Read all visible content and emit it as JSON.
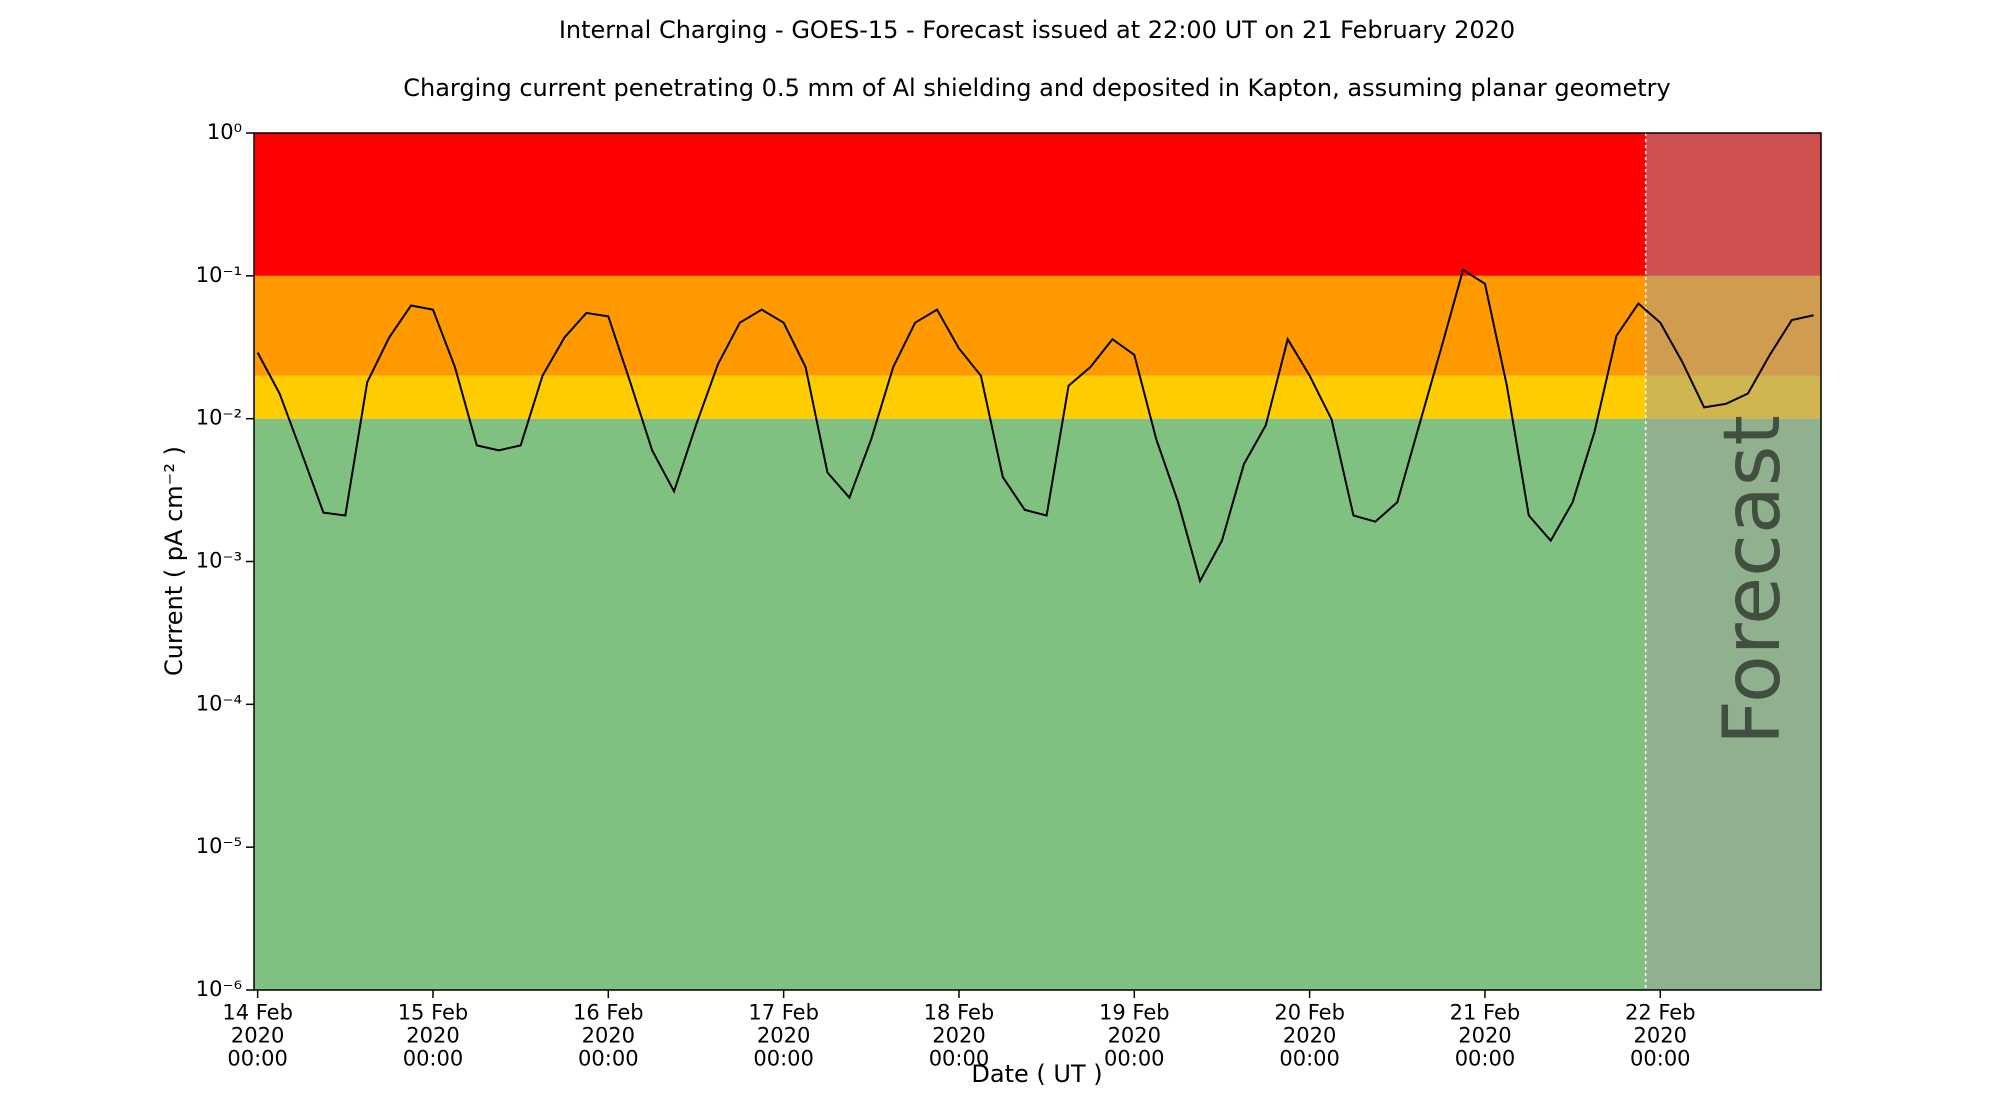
{
  "chart_data": {
    "type": "line",
    "title": "Internal Charging - GOES-15 - Forecast issued at 22:00 UT on 21 February 2020",
    "subtitle": "Charging current penetrating 0.5 mm of Al shielding and deposited in Kapton, assuming planar geometry",
    "xlabel": "Date ( UT )",
    "ylabel": "Current ( pA cm⁻² )",
    "log_y": true,
    "xlim": [
      "2020-02-13T23:30",
      "2020-02-22T22:00"
    ],
    "ylim": [
      1e-06,
      1
    ],
    "xticks": [
      {
        "value": "2020-02-14T00:00",
        "label": "14 Feb\n2020\n00:00"
      },
      {
        "value": "2020-02-15T00:00",
        "label": "15 Feb\n2020\n00:00"
      },
      {
        "value": "2020-02-16T00:00",
        "label": "16 Feb\n2020\n00:00"
      },
      {
        "value": "2020-02-17T00:00",
        "label": "17 Feb\n2020\n00:00"
      },
      {
        "value": "2020-02-18T00:00",
        "label": "18 Feb\n2020\n00:00"
      },
      {
        "value": "2020-02-19T00:00",
        "label": "19 Feb\n2020\n00:00"
      },
      {
        "value": "2020-02-20T00:00",
        "label": "20 Feb\n2020\n00:00"
      },
      {
        "value": "2020-02-21T00:00",
        "label": "21 Feb\n2020\n00:00"
      },
      {
        "value": "2020-02-22T00:00",
        "label": "22 Feb\n2020\n00:00"
      }
    ],
    "yticks": [
      {
        "value": 1e-06,
        "label": "10⁻⁶"
      },
      {
        "value": 1e-05,
        "label": "10⁻⁵"
      },
      {
        "value": 0.0001,
        "label": "10⁻⁴"
      },
      {
        "value": 0.001,
        "label": "10⁻³"
      },
      {
        "value": 0.01,
        "label": "10⁻²"
      },
      {
        "value": 0.1,
        "label": "10⁻¹"
      },
      {
        "value": 1,
        "label": "10⁰"
      }
    ],
    "bands": [
      {
        "from": 1e-06,
        "to": 0.01,
        "color": "#80c080"
      },
      {
        "from": 0.01,
        "to": 0.02,
        "color": "#ffcc00"
      },
      {
        "from": 0.02,
        "to": 0.1,
        "color": "#ff9900"
      },
      {
        "from": 0.1,
        "to": 1,
        "color": "#ff0000"
      }
    ],
    "forecast": {
      "start": "2020-02-21T22:00",
      "label": "Forecast",
      "color": "#a0a0a0"
    },
    "x": [
      "2020-02-14T00:00",
      "2020-02-14T03:00",
      "2020-02-14T06:00",
      "2020-02-14T09:00",
      "2020-02-14T12:00",
      "2020-02-14T15:00",
      "2020-02-14T18:00",
      "2020-02-14T21:00",
      "2020-02-15T00:00",
      "2020-02-15T03:00",
      "2020-02-15T06:00",
      "2020-02-15T09:00",
      "2020-02-15T12:00",
      "2020-02-15T15:00",
      "2020-02-15T18:00",
      "2020-02-15T21:00",
      "2020-02-16T00:00",
      "2020-02-16T03:00",
      "2020-02-16T06:00",
      "2020-02-16T09:00",
      "2020-02-16T12:00",
      "2020-02-16T15:00",
      "2020-02-16T18:00",
      "2020-02-16T21:00",
      "2020-02-17T00:00",
      "2020-02-17T03:00",
      "2020-02-17T06:00",
      "2020-02-17T09:00",
      "2020-02-17T12:00",
      "2020-02-17T15:00",
      "2020-02-17T18:00",
      "2020-02-17T21:00",
      "2020-02-18T00:00",
      "2020-02-18T03:00",
      "2020-02-18T06:00",
      "2020-02-18T09:00",
      "2020-02-18T12:00",
      "2020-02-18T15:00",
      "2020-02-18T18:00",
      "2020-02-18T21:00",
      "2020-02-19T00:00",
      "2020-02-19T03:00",
      "2020-02-19T06:00",
      "2020-02-19T09:00",
      "2020-02-19T12:00",
      "2020-02-19T15:00",
      "2020-02-19T18:00",
      "2020-02-19T21:00",
      "2020-02-20T00:00",
      "2020-02-20T03:00",
      "2020-02-20T06:00",
      "2020-02-20T09:00",
      "2020-02-20T12:00",
      "2020-02-20T15:00",
      "2020-02-20T18:00",
      "2020-02-20T21:00",
      "2020-02-21T00:00",
      "2020-02-21T03:00",
      "2020-02-21T06:00",
      "2020-02-21T09:00",
      "2020-02-21T12:00",
      "2020-02-21T15:00",
      "2020-02-21T18:00",
      "2020-02-21T21:00",
      "2020-02-22T00:00",
      "2020-02-22T03:00",
      "2020-02-22T06:00",
      "2020-02-22T09:00",
      "2020-02-22T12:00",
      "2020-02-22T15:00",
      "2020-02-22T18:00",
      "2020-02-22T21:00"
    ],
    "series": [
      {
        "name": "Current",
        "color": "#000000",
        "values": [
          0.029,
          0.015,
          0.0058,
          0.0022,
          0.0021,
          0.018,
          0.037,
          0.062,
          0.058,
          0.023,
          0.0065,
          0.006,
          0.0065,
          0.02,
          0.037,
          0.055,
          0.052,
          0.018,
          0.006,
          0.0031,
          0.009,
          0.024,
          0.047,
          0.058,
          0.047,
          0.023,
          0.0042,
          0.0028,
          0.0072,
          0.023,
          0.047,
          0.058,
          0.031,
          0.02,
          0.0039,
          0.0023,
          0.0021,
          0.017,
          0.023,
          0.036,
          0.028,
          0.0072,
          0.0026,
          0.00073,
          0.0014,
          0.0048,
          0.009,
          0.036,
          0.02,
          0.0099,
          0.0021,
          0.0019,
          0.0026,
          0.009,
          0.031,
          0.11,
          0.088,
          0.017,
          0.0021,
          0.0014,
          0.0026,
          0.0081,
          0.038,
          0.064,
          0.047,
          0.025,
          0.012,
          0.0127,
          0.015,
          0.028,
          0.049,
          0.053
        ]
      }
    ]
  }
}
